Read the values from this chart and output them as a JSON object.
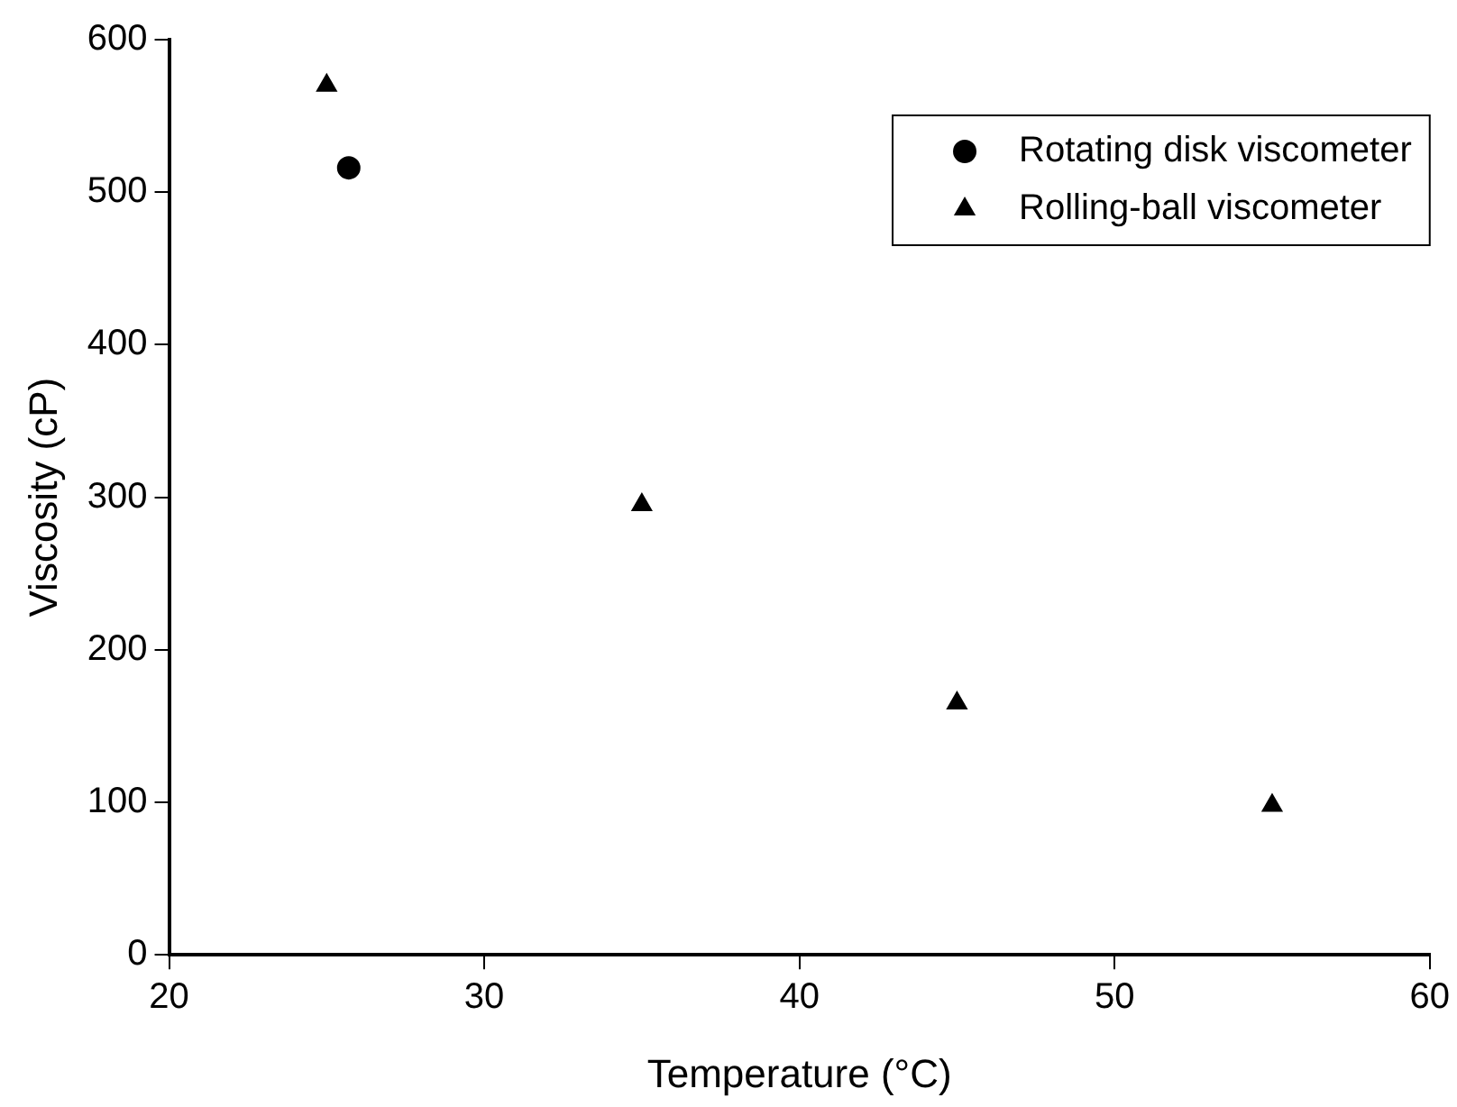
{
  "chart_data": {
    "type": "scatter",
    "xlabel": "Temperature (°C)",
    "ylabel": "Viscosity (cP)",
    "xlim": [
      20,
      60
    ],
    "xticks": [
      20,
      30,
      40,
      50,
      60
    ],
    "ylim": [
      0,
      600
    ],
    "yticks": [
      0,
      100,
      200,
      300,
      400,
      500,
      600
    ],
    "grid": false,
    "legend": "top right",
    "series": [
      {
        "name": "Rotating disk viscometer",
        "color": "#000000",
        "marker": "circle",
        "x": [
          25.7
        ],
        "values": [
          516
        ]
      },
      {
        "name": "Rolling-ball viscometer",
        "color": "#000000",
        "marker": "triangle",
        "x": [
          25,
          35,
          45,
          55
        ],
        "values": [
          570,
          295,
          165,
          98
        ]
      }
    ]
  }
}
